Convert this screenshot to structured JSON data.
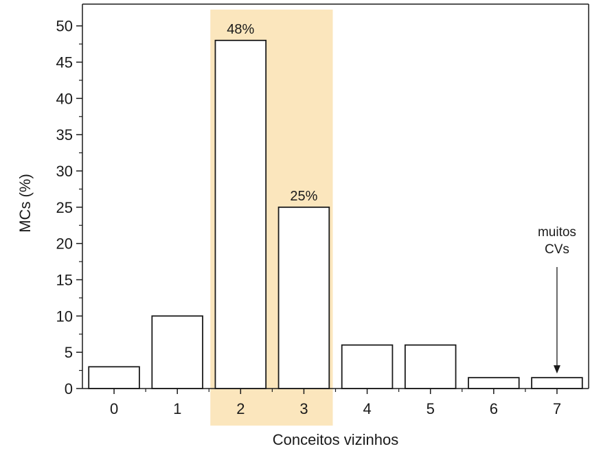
{
  "chart_data": {
    "type": "bar",
    "categories": [
      "0",
      "1",
      "2",
      "3",
      "4",
      "5",
      "6",
      "7"
    ],
    "values": [
      3,
      10,
      48,
      25,
      6,
      6,
      1.5,
      1.5
    ],
    "xlabel": "Conceitos vizinhos",
    "ylabel": "MCs (%)",
    "ylim": [
      0,
      53
    ],
    "yticks": [
      0,
      5,
      10,
      15,
      20,
      25,
      30,
      35,
      40,
      45,
      50
    ],
    "grid": false,
    "highlight": {
      "categories": [
        "2",
        "3"
      ],
      "color": "#fbe6bd"
    },
    "data_labels": [
      {
        "category": "2",
        "text": "48%"
      },
      {
        "category": "3",
        "text": "25%"
      }
    ],
    "annotation": {
      "category": "7",
      "lines": [
        "muitos",
        "CVs"
      ],
      "type": "arrow"
    },
    "bar_fill": "#ffffff",
    "bar_stroke": "#1a1a1a"
  }
}
